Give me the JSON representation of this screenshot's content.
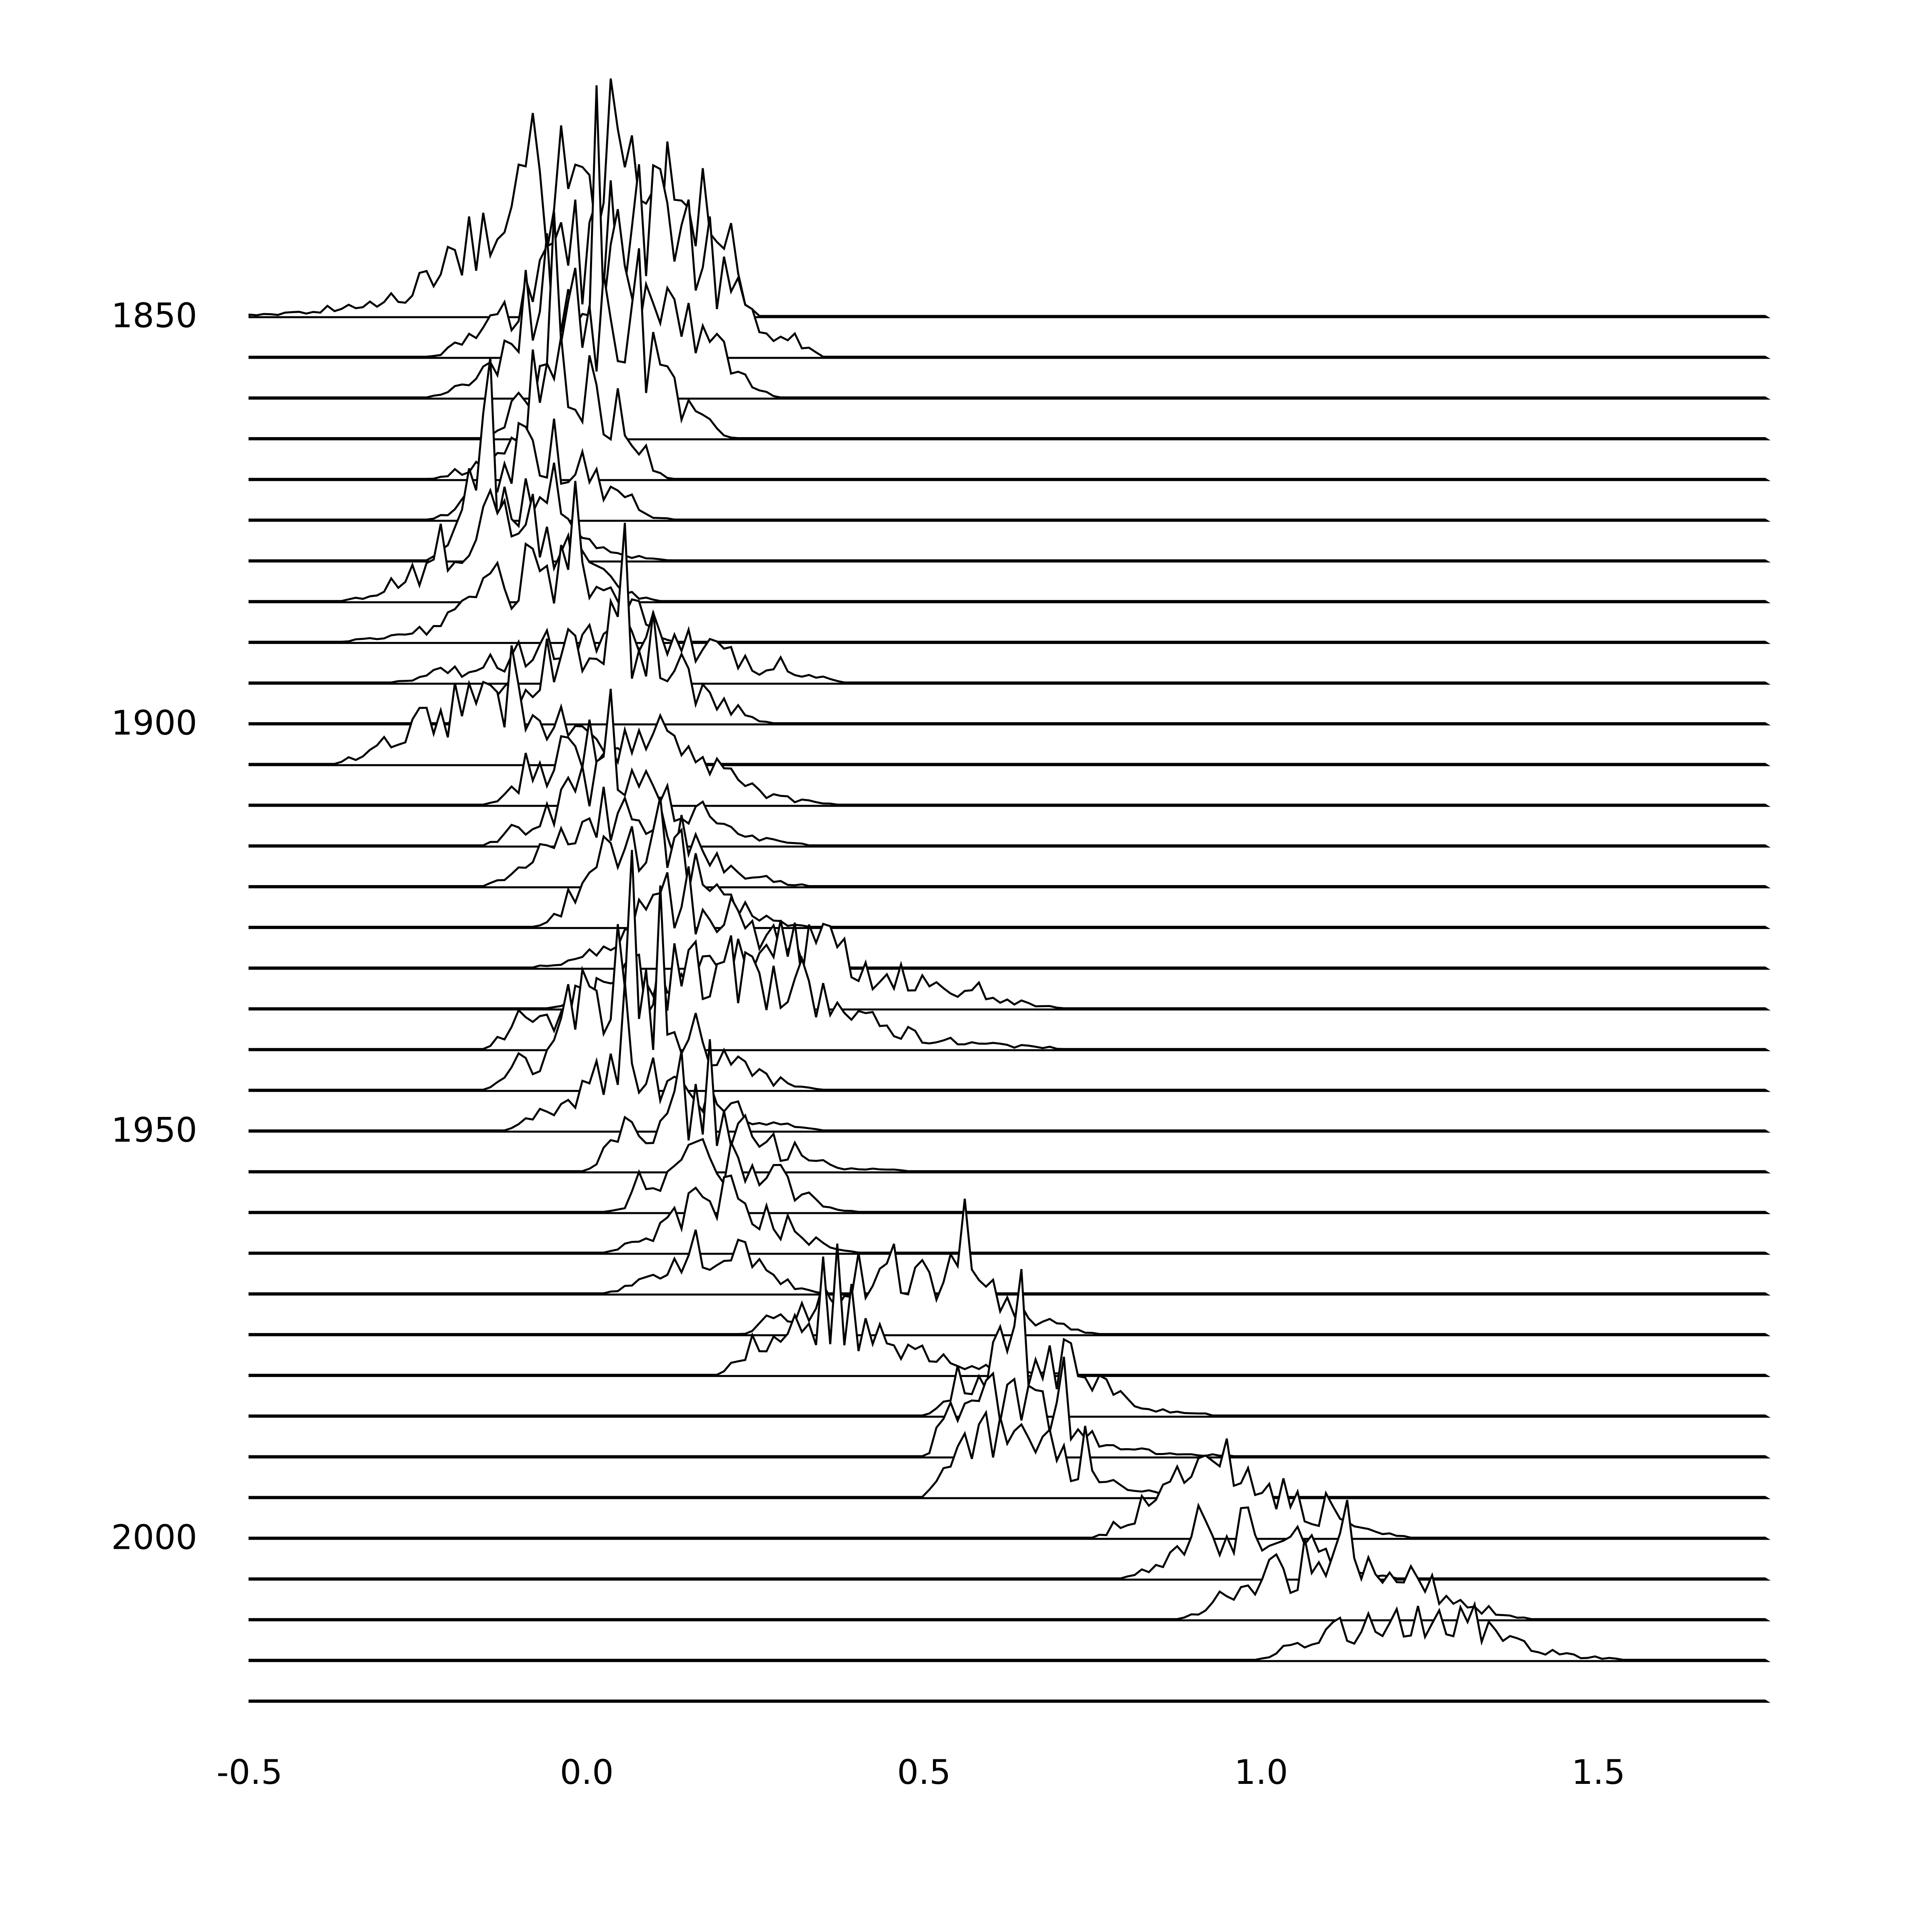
{
  "chart_data": {
    "type": "ridgeline",
    "title": "",
    "xlabel": "",
    "ylabel": "",
    "xlim": [
      -0.5,
      1.75
    ],
    "x_ticks": [
      -0.5,
      0.0,
      0.5,
      1.0,
      1.5
    ],
    "x_tick_labels": [
      "-0.5",
      "0.0",
      "0.5",
      "1.0",
      "1.5"
    ],
    "y_tick_labels": [
      {
        "year": 1850,
        "label": "1850"
      },
      {
        "year": 1900,
        "label": "1900"
      },
      {
        "year": 1950,
        "label": "1950"
      },
      {
        "year": 2000,
        "label": "2000"
      }
    ],
    "year_start": 1850,
    "year_end": 2020,
    "year_step": 5,
    "grid": false,
    "legend": "none",
    "line_color": "#000000",
    "distributions": [
      {
        "year": 1850,
        "min": -0.5,
        "max": 0.25,
        "mean": 0.02,
        "peak": 0.38
      },
      {
        "year": 1855,
        "min": -0.23,
        "max": 0.35,
        "mean": 0.07,
        "peak": 0.36
      },
      {
        "year": 1860,
        "min": -0.23,
        "max": 0.28,
        "mean": 0.04,
        "peak": 0.33
      },
      {
        "year": 1865,
        "min": -0.15,
        "max": 0.22,
        "mean": 0.02,
        "peak": 0.34
      },
      {
        "year": 1870,
        "min": -0.23,
        "max": 0.12,
        "mean": -0.02,
        "peak": 0.24
      },
      {
        "year": 1875,
        "min": -0.23,
        "max": 0.12,
        "mean": -0.07,
        "peak": 0.18
      },
      {
        "year": 1880,
        "min": -0.23,
        "max": 0.12,
        "mean": -0.12,
        "peak": 0.2
      },
      {
        "year": 1885,
        "min": -0.36,
        "max": 0.1,
        "mean": -0.12,
        "peak": 0.19
      },
      {
        "year": 1890,
        "min": -0.36,
        "max": 0.12,
        "mean": -0.06,
        "peak": 0.19
      },
      {
        "year": 1895,
        "min": -0.28,
        "max": 0.38,
        "mean": 0.05,
        "peak": 0.12
      },
      {
        "year": 1900,
        "min": -0.2,
        "max": 0.27,
        "mean": 0.03,
        "peak": 0.22
      },
      {
        "year": 1905,
        "min": -0.37,
        "max": 0.15,
        "mean": -0.14,
        "peak": 0.15
      },
      {
        "year": 1910,
        "min": -0.15,
        "max": 0.37,
        "mean": 0.06,
        "peak": 0.17
      },
      {
        "year": 1915,
        "min": -0.15,
        "max": 0.32,
        "mean": 0.05,
        "peak": 0.16
      },
      {
        "year": 1920,
        "min": -0.15,
        "max": 0.32,
        "mean": 0.06,
        "peak": 0.17
      },
      {
        "year": 1925,
        "min": -0.07,
        "max": 0.32,
        "mean": 0.09,
        "peak": 0.21
      },
      {
        "year": 1930,
        "min": -0.07,
        "max": 0.35,
        "mean": 0.16,
        "peak": 0.18
      },
      {
        "year": 1935,
        "min": -0.05,
        "max": 0.7,
        "mean": 0.3,
        "peak": 0.14
      },
      {
        "year": 1940,
        "min": -0.15,
        "max": 0.7,
        "mean": 0.17,
        "peak": 0.19
      },
      {
        "year": 1945,
        "min": -0.15,
        "max": 0.35,
        "mean": 0.06,
        "peak": 0.21
      },
      {
        "year": 1950,
        "min": -0.12,
        "max": 0.35,
        "mean": 0.08,
        "peak": 0.14
      },
      {
        "year": 1955,
        "min": 0.0,
        "max": 0.47,
        "mean": 0.15,
        "peak": 0.15
      },
      {
        "year": 1960,
        "min": 0.03,
        "max": 0.4,
        "mean": 0.2,
        "peak": 0.15
      },
      {
        "year": 1965,
        "min": 0.03,
        "max": 0.4,
        "mean": 0.2,
        "peak": 0.14
      },
      {
        "year": 1970,
        "min": 0.03,
        "max": 0.35,
        "mean": 0.18,
        "peak": 0.12
      },
      {
        "year": 1975,
        "min": 0.23,
        "max": 0.75,
        "mean": 0.48,
        "peak": 0.17
      },
      {
        "year": 1980,
        "min": 0.2,
        "max": 0.72,
        "mean": 0.36,
        "peak": 0.13
      },
      {
        "year": 1985,
        "min": 0.5,
        "max": 0.92,
        "mean": 0.65,
        "peak": 0.16
      },
      {
        "year": 1990,
        "min": 0.5,
        "max": 0.95,
        "mean": 0.62,
        "peak": 0.14
      },
      {
        "year": 1995,
        "min": 0.5,
        "max": 0.95,
        "mean": 0.62,
        "peak": 0.15
      },
      {
        "year": 2000,
        "min": 0.75,
        "max": 1.22,
        "mean": 0.95,
        "peak": 0.16
      },
      {
        "year": 2005,
        "min": 0.8,
        "max": 1.2,
        "mean": 0.98,
        "peak": 0.14
      },
      {
        "year": 2010,
        "min": 0.88,
        "max": 1.4,
        "mean": 1.12,
        "peak": 0.16
      },
      {
        "year": 2015,
        "min": 1.0,
        "max": 1.53,
        "mean": 1.22,
        "peak": 0.11
      },
      {
        "year": 2020,
        "min": 1.0,
        "max": 1.53,
        "mean": 1.22,
        "peak": 0.0
      }
    ]
  }
}
